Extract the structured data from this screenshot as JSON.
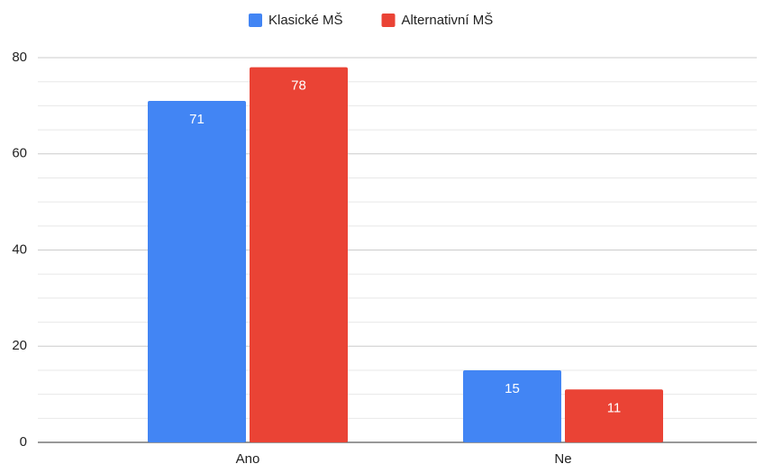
{
  "chart_data": {
    "type": "bar",
    "categories": [
      "Ano",
      "Ne"
    ],
    "series": [
      {
        "name": "Klasické MŠ",
        "color": "#4285f4",
        "values": [
          71,
          15
        ]
      },
      {
        "name": "Alternativní MŠ",
        "color": "#ea4335",
        "values": [
          78,
          11
        ]
      }
    ],
    "ylim": [
      0,
      80
    ],
    "yticks": [
      0,
      20,
      40,
      60,
      80
    ],
    "yticks_minor": [
      5,
      10,
      15,
      25,
      30,
      35,
      45,
      50,
      55,
      65,
      70,
      75
    ],
    "grid": true,
    "legend": "top"
  }
}
